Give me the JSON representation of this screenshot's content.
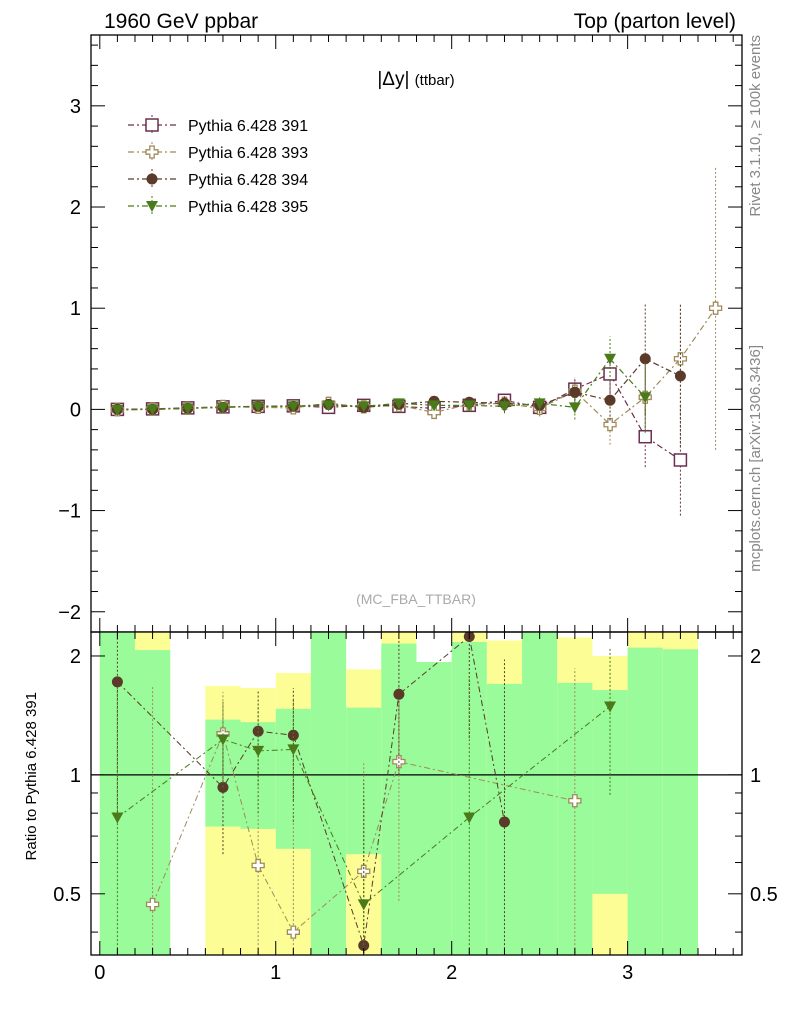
{
  "header": {
    "left_title": "1960 GeV ppbar",
    "right_title": "Top (parton level)"
  },
  "side_labels": {
    "rivet": "Rivet 3.1.10, ≥ 100k events",
    "mcplots": "mcplots.cern.ch [arXiv:1306.3436]"
  },
  "chart_data": [
    {
      "type": "line",
      "title": "|Δy| (ttbar)",
      "title_main": "|Δy|",
      "title_sub": "(ttbar)",
      "analysis_label": "(MC_FBA_TTBAR)",
      "xlim": [
        -0.05,
        3.65
      ],
      "ylim": [
        -2.2,
        3.7
      ],
      "yticks": [
        -2,
        -1,
        0,
        1,
        2,
        3
      ],
      "ytick_labels": [
        "−2",
        "−1",
        "0",
        "1",
        "2",
        "3"
      ],
      "legend_position": "top-left",
      "series": [
        {
          "name": "Pythia 6.428 391",
          "color": "#6b2f4f",
          "marker": "open-square",
          "x": [
            0.1,
            0.3,
            0.5,
            0.7,
            0.9,
            1.1,
            1.3,
            1.5,
            1.7,
            1.9,
            2.1,
            2.3,
            2.5,
            2.7,
            2.9,
            3.1,
            3.3
          ],
          "y": [
            0.0,
            0.005,
            0.015,
            0.025,
            0.03,
            0.035,
            0.02,
            0.04,
            0.03,
            0.01,
            0.04,
            0.09,
            0.02,
            0.2,
            0.35,
            -0.27,
            -0.5
          ],
          "err": [
            0.02,
            0.02,
            0.02,
            0.02,
            0.02,
            0.03,
            0.03,
            0.03,
            0.04,
            0.05,
            0.06,
            0.06,
            0.08,
            0.12,
            0.2,
            0.3,
            0.55
          ]
        },
        {
          "name": "Pythia 6.428 393",
          "color": "#a08a5a",
          "marker": "open-cross",
          "x": [
            0.1,
            0.3,
            0.5,
            0.7,
            0.9,
            1.1,
            1.3,
            1.5,
            1.7,
            1.9,
            2.1,
            2.3,
            2.5,
            2.7,
            2.9,
            3.1,
            3.3,
            3.5
          ],
          "y": [
            -0.005,
            0.002,
            0.01,
            0.03,
            0.02,
            0.015,
            0.06,
            0.025,
            0.04,
            -0.03,
            0.05,
            0.06,
            0.01,
            0.18,
            -0.15,
            0.12,
            0.5,
            1.0
          ],
          "err": [
            0.02,
            0.02,
            0.02,
            0.03,
            0.03,
            0.03,
            0.04,
            0.04,
            0.05,
            0.05,
            0.06,
            0.07,
            0.08,
            0.12,
            0.2,
            0.35,
            0.55,
            1.4
          ]
        },
        {
          "name": "Pythia 6.428 394",
          "color": "#5a3a28",
          "marker": "filled-circle",
          "x": [
            0.1,
            0.3,
            0.5,
            0.7,
            0.9,
            1.1,
            1.3,
            1.5,
            1.7,
            1.9,
            2.1,
            2.3,
            2.5,
            2.7,
            2.9,
            3.1,
            3.3
          ],
          "y": [
            0.0,
            0.0,
            0.01,
            0.02,
            0.03,
            0.03,
            0.05,
            0.02,
            0.05,
            0.08,
            0.07,
            0.06,
            0.04,
            0.17,
            0.09,
            0.5,
            0.33
          ],
          "err": [
            0.02,
            0.02,
            0.02,
            0.02,
            0.02,
            0.03,
            0.03,
            0.04,
            0.04,
            0.05,
            0.06,
            0.07,
            0.08,
            0.12,
            0.2,
            0.55,
            0.7
          ]
        },
        {
          "name": "Pythia 6.428 395",
          "color": "#4a7a1a",
          "marker": "filled-triangle-down",
          "x": [
            0.1,
            0.3,
            0.5,
            0.7,
            0.9,
            1.1,
            1.3,
            1.5,
            1.7,
            1.9,
            2.1,
            2.3,
            2.5,
            2.7,
            2.9,
            3.1
          ],
          "y": [
            -0.005,
            0.0,
            0.01,
            0.02,
            0.03,
            0.03,
            0.04,
            0.03,
            0.06,
            0.04,
            0.04,
            0.03,
            0.06,
            0.02,
            0.5,
            0.12
          ],
          "err": [
            0.02,
            0.02,
            0.02,
            0.02,
            0.02,
            0.03,
            0.03,
            0.04,
            0.04,
            0.05,
            0.06,
            0.07,
            0.08,
            0.12,
            0.22,
            0.35
          ]
        }
      ]
    },
    {
      "type": "line",
      "ylabel": "Ratio to Pythia 6.428 391",
      "xlim": [
        -0.05,
        3.65
      ],
      "ylim": [
        0.35,
        2.3
      ],
      "yticks": [
        0.5,
        1,
        2
      ],
      "ytick_labels": [
        "0.5",
        "1",
        "2"
      ],
      "xticks": [
        0,
        1,
        2,
        3
      ],
      "xtick_labels": [
        "0",
        "1",
        "2",
        "3"
      ],
      "reference_line": 1,
      "bands": [
        {
          "x0": 0.0,
          "x1": 0.2,
          "yellow": [
            0.3,
            2.4
          ],
          "green": [
            0.3,
            2.4
          ]
        },
        {
          "x0": 0.2,
          "x1": 0.4,
          "yellow": [
            0.3,
            2.4
          ],
          "green": [
            0.3,
            2.07
          ]
        },
        {
          "x0": 0.6,
          "x1": 0.8,
          "yellow": [
            0.3,
            1.68
          ],
          "green": [
            0.74,
            1.38
          ]
        },
        {
          "x0": 0.8,
          "x1": 1.0,
          "yellow": [
            0.3,
            1.66
          ],
          "green": [
            0.73,
            1.36
          ]
        },
        {
          "x0": 1.0,
          "x1": 1.2,
          "yellow": [
            0.3,
            1.81
          ],
          "green": [
            0.65,
            1.47
          ]
        },
        {
          "x0": 1.2,
          "x1": 1.4,
          "yellow": [
            0.3,
            2.4
          ],
          "green": [
            0.3,
            2.4
          ]
        },
        {
          "x0": 1.4,
          "x1": 1.6,
          "yellow": [
            0.3,
            1.85
          ],
          "green": [
            0.63,
            1.48
          ]
        },
        {
          "x0": 1.6,
          "x1": 1.8,
          "yellow": [
            0.3,
            2.4
          ],
          "green": [
            0.3,
            2.15
          ]
        },
        {
          "x0": 1.8,
          "x1": 2.0,
          "yellow": [
            0.3,
            1.93
          ],
          "green": [
            0.3,
            1.93
          ]
        },
        {
          "x0": 2.0,
          "x1": 2.2,
          "yellow": [
            0.3,
            2.4
          ],
          "green": [
            0.3,
            2.17
          ]
        },
        {
          "x0": 2.2,
          "x1": 2.4,
          "yellow": [
            0.3,
            2.19
          ],
          "green": [
            0.3,
            1.7
          ]
        },
        {
          "x0": 2.4,
          "x1": 2.6,
          "yellow": [
            0.3,
            2.4
          ],
          "green": [
            0.3,
            2.4
          ]
        },
        {
          "x0": 2.6,
          "x1": 2.8,
          "yellow": [
            0.3,
            2.23
          ],
          "green": [
            0.3,
            1.71
          ]
        },
        {
          "x0": 2.8,
          "x1": 3.0,
          "yellow": [
            0.3,
            2.0
          ],
          "green": [
            0.5,
            1.64
          ]
        },
        {
          "x0": 3.0,
          "x1": 3.2,
          "yellow": [
            0.3,
            2.4
          ],
          "green": [
            0.3,
            2.1
          ]
        },
        {
          "x0": 3.2,
          "x1": 3.4,
          "yellow": [
            0.3,
            2.4
          ],
          "green": [
            0.3,
            2.08
          ]
        }
      ],
      "series": [
        {
          "name": "Pythia 6.428 393",
          "color": "#a08a5a",
          "marker": "open-cross",
          "x": [
            0.3,
            0.7,
            0.9,
            1.1,
            1.5,
            1.7,
            2.7
          ],
          "y": [
            0.47,
            1.27,
            0.59,
            0.4,
            0.57,
            1.08,
            0.86
          ],
          "err": [
            1.2,
            0.35,
            0.3,
            0.4,
            0.5,
            0.6,
            1.0
          ]
        },
        {
          "name": "Pythia 6.428 394",
          "color": "#5a3a28",
          "marker": "filled-circle",
          "x": [
            0.1,
            0.7,
            0.9,
            1.1,
            1.5,
            1.7,
            2.1,
            2.3
          ],
          "y": [
            1.72,
            0.93,
            1.29,
            1.26,
            0.37,
            1.6,
            2.24,
            0.76
          ],
          "err": [
            0.95,
            0.3,
            0.35,
            0.4,
            0.5,
            0.6,
            1.0,
            1.2
          ]
        },
        {
          "name": "Pythia 6.428 395",
          "color": "#4a7a1a",
          "marker": "filled-triangle-down",
          "x": [
            0.1,
            0.7,
            0.9,
            1.1,
            1.5,
            2.1,
            2.9
          ],
          "y": [
            0.78,
            1.23,
            1.15,
            1.16,
            0.47,
            0.78,
            1.49
          ],
          "err": [
            0.9,
            0.3,
            0.35,
            0.4,
            0.5,
            1.0,
            0.6
          ]
        }
      ]
    }
  ]
}
